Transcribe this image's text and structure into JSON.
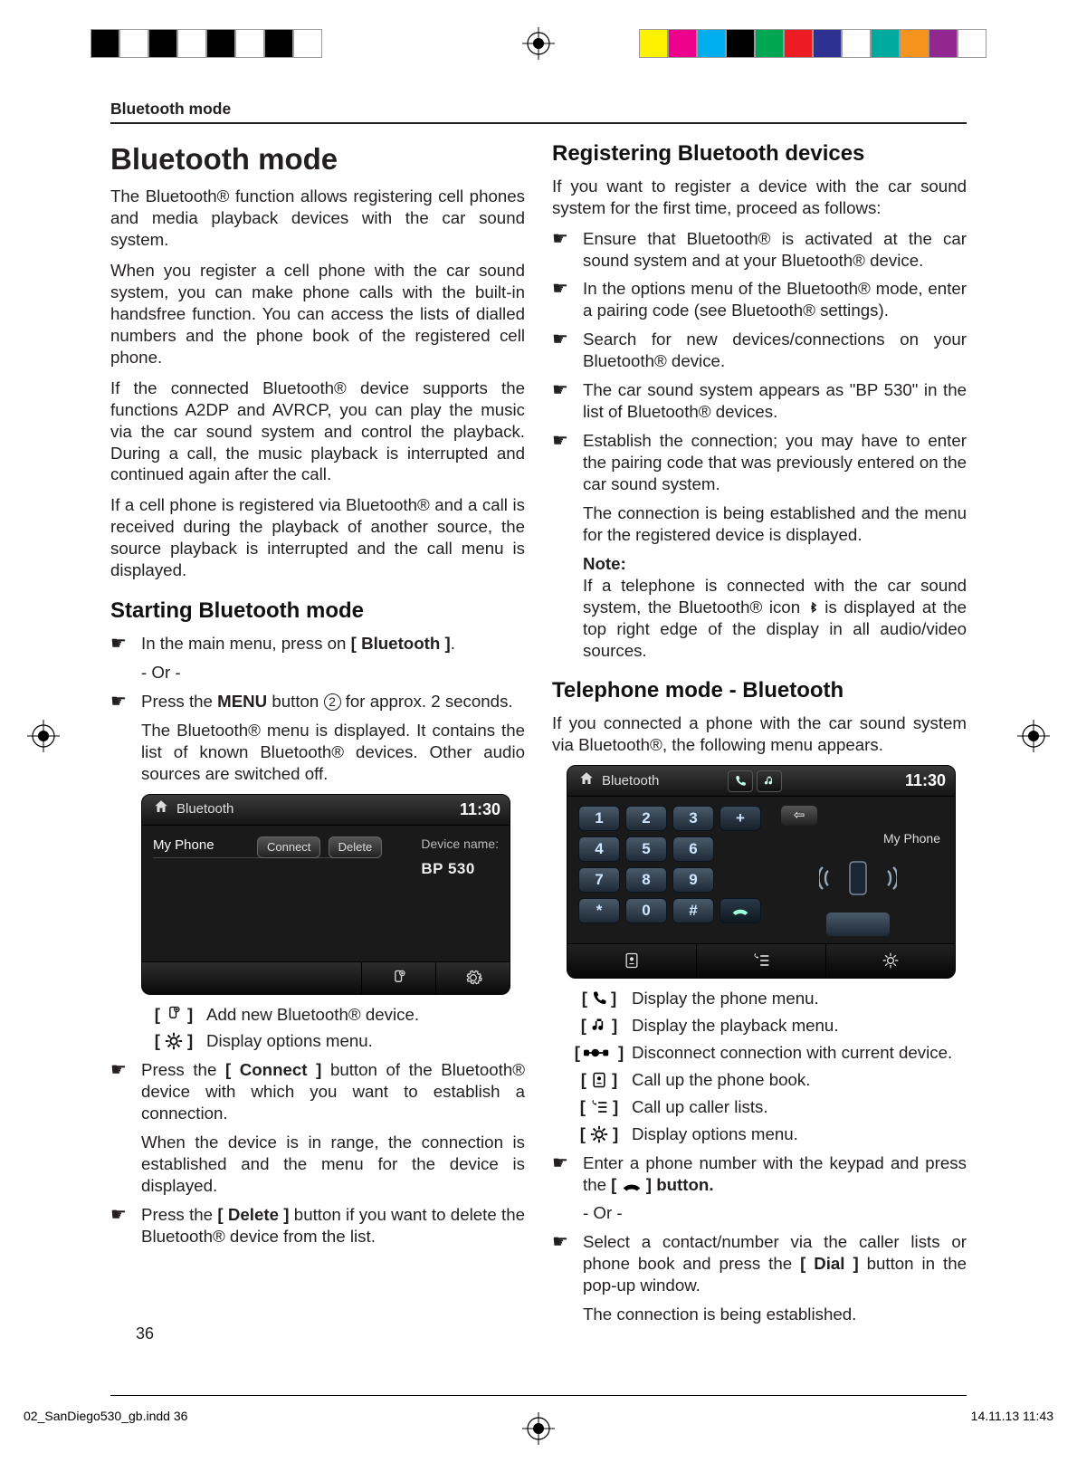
{
  "print": {
    "left_swatches": [
      "#000000",
      "#ffffff",
      "#000000",
      "#ffffff",
      "#000000",
      "#ffffff",
      "#000000",
      "#ffffff"
    ],
    "right_swatches": [
      "#fff200",
      "#ec008c",
      "#00aeef",
      "#000000",
      "#00a651",
      "#ed1c24",
      "#2e3192",
      "#ffffff",
      "#00a99d",
      "#f7941d",
      "#92278f",
      "#ffffff"
    ]
  },
  "header": {
    "running": "Bluetooth mode"
  },
  "left": {
    "title": "Bluetooth mode",
    "p1": "The Bluetooth® function allows registering cell phones and media playback devices with the car sound system.",
    "p2": "When you register a cell phone with the car sound system, you can make phone calls with the built-in handsfree function. You can access the lists of dialled numbers and the phone book of the registered cell phone.",
    "p3": "If the connected Bluetooth® device supports the functions A2DP and AVRCP, you can play the music via the car sound system and control the playback. During a call, the music playback is interrupted and continued again after the call.",
    "p4": "If a cell phone is registered via Bluetooth® and a call is received during the playback of another source, the source playback is interrupted and the call menu is displayed.",
    "start_h": "Starting Bluetooth mode",
    "start_b1_a": "In the main menu, press on ",
    "start_b1_b": "[ Bluetooth ]",
    "start_b1_c": ".",
    "or": "- Or -",
    "start_b2_a": "Press the ",
    "start_b2_b": "MENU",
    "start_b2_c": " button ",
    "start_b2_num": "2",
    "start_b2_d": " for approx. 2 seconds.",
    "start_sub": "The Bluetooth® menu is displayed. It contains the list of known Bluetooth® devices. Other audio sources are switched off.",
    "dev1": {
      "title": "Bluetooth",
      "time": "11:30",
      "device": "My Phone",
      "btn_connect": "Connect",
      "btn_delete": "Delete",
      "side_label": "Device name:",
      "side_value": "BP 530"
    },
    "ic1": "Add new Bluetooth® device.",
    "ic2": "Display options menu.",
    "b3_a": "Press the ",
    "b3_b": "[ Connect ]",
    "b3_c": " button of the Bluetooth® device with which you want to establish a connection.",
    "b3_sub": "When the device is in range, the connection is established and the menu for the device is displayed.",
    "b4_a": "Press the ",
    "b4_b": "[ Delete ]",
    "b4_c": " button if you want to delete the Bluetooth® device from the list."
  },
  "right": {
    "reg_h": "Registering Bluetooth devices",
    "reg_p": "If you want to register a device with the car sound system for the first time, proceed as follows:",
    "r1": "Ensure that Bluetooth® is activated at the car sound system and at your Bluetooth® device.",
    "r2": "In the options menu of the Bluetooth® mode, enter a pairing code (see Bluetooth® settings).",
    "r3": "Search for new devices/connections on your Bluetooth® device.",
    "r4": "The car sound system appears as \"BP 530\" in the list of Bluetooth® devices.",
    "r5": "Establish the connection; you may have to enter the pairing code that was previously entered on the car sound system.",
    "r5_sub": "The connection is being established and the menu for the registered device is displayed.",
    "note_h": "Note:",
    "note_b": "If a telephone is connected with the car sound system, the Bluetooth® icon ",
    "note_c": " is displayed at the top right edge of the display in all audio/video sources.",
    "tel_h": "Telephone mode - Bluetooth",
    "tel_p": "If you connected a phone with the car sound system via Bluetooth®, the following menu appears.",
    "dev2": {
      "title": "Bluetooth",
      "time": "11:30",
      "label": "My Phone",
      "keys": [
        [
          "1",
          "2",
          "3",
          "+"
        ],
        [
          "4",
          "5",
          "6",
          ""
        ],
        [
          "7",
          "8",
          "9",
          ""
        ],
        [
          "*",
          "0",
          "#",
          "call"
        ]
      ]
    },
    "il1": "Display the phone menu.",
    "il2": "Display the playback menu.",
    "il3": "Disconnect connection with current device.",
    "il4": "Call up the phone book.",
    "il5": "Call up caller lists.",
    "il6": "Display options menu.",
    "b6_a": "Enter a phone number with the keypad and press the ",
    "b6_b": "] button.",
    "or2": "- Or -",
    "b7_a": "Select a contact/number via the caller lists or phone book and press the ",
    "b7_b": "[ Dial ]",
    "b7_c": " button in the pop-up window.",
    "b7_sub": "The connection is being established."
  },
  "footer": {
    "page": "36",
    "file": "02_SanDiego530_gb.indd   36",
    "stamp": "14.11.13   11:43"
  }
}
